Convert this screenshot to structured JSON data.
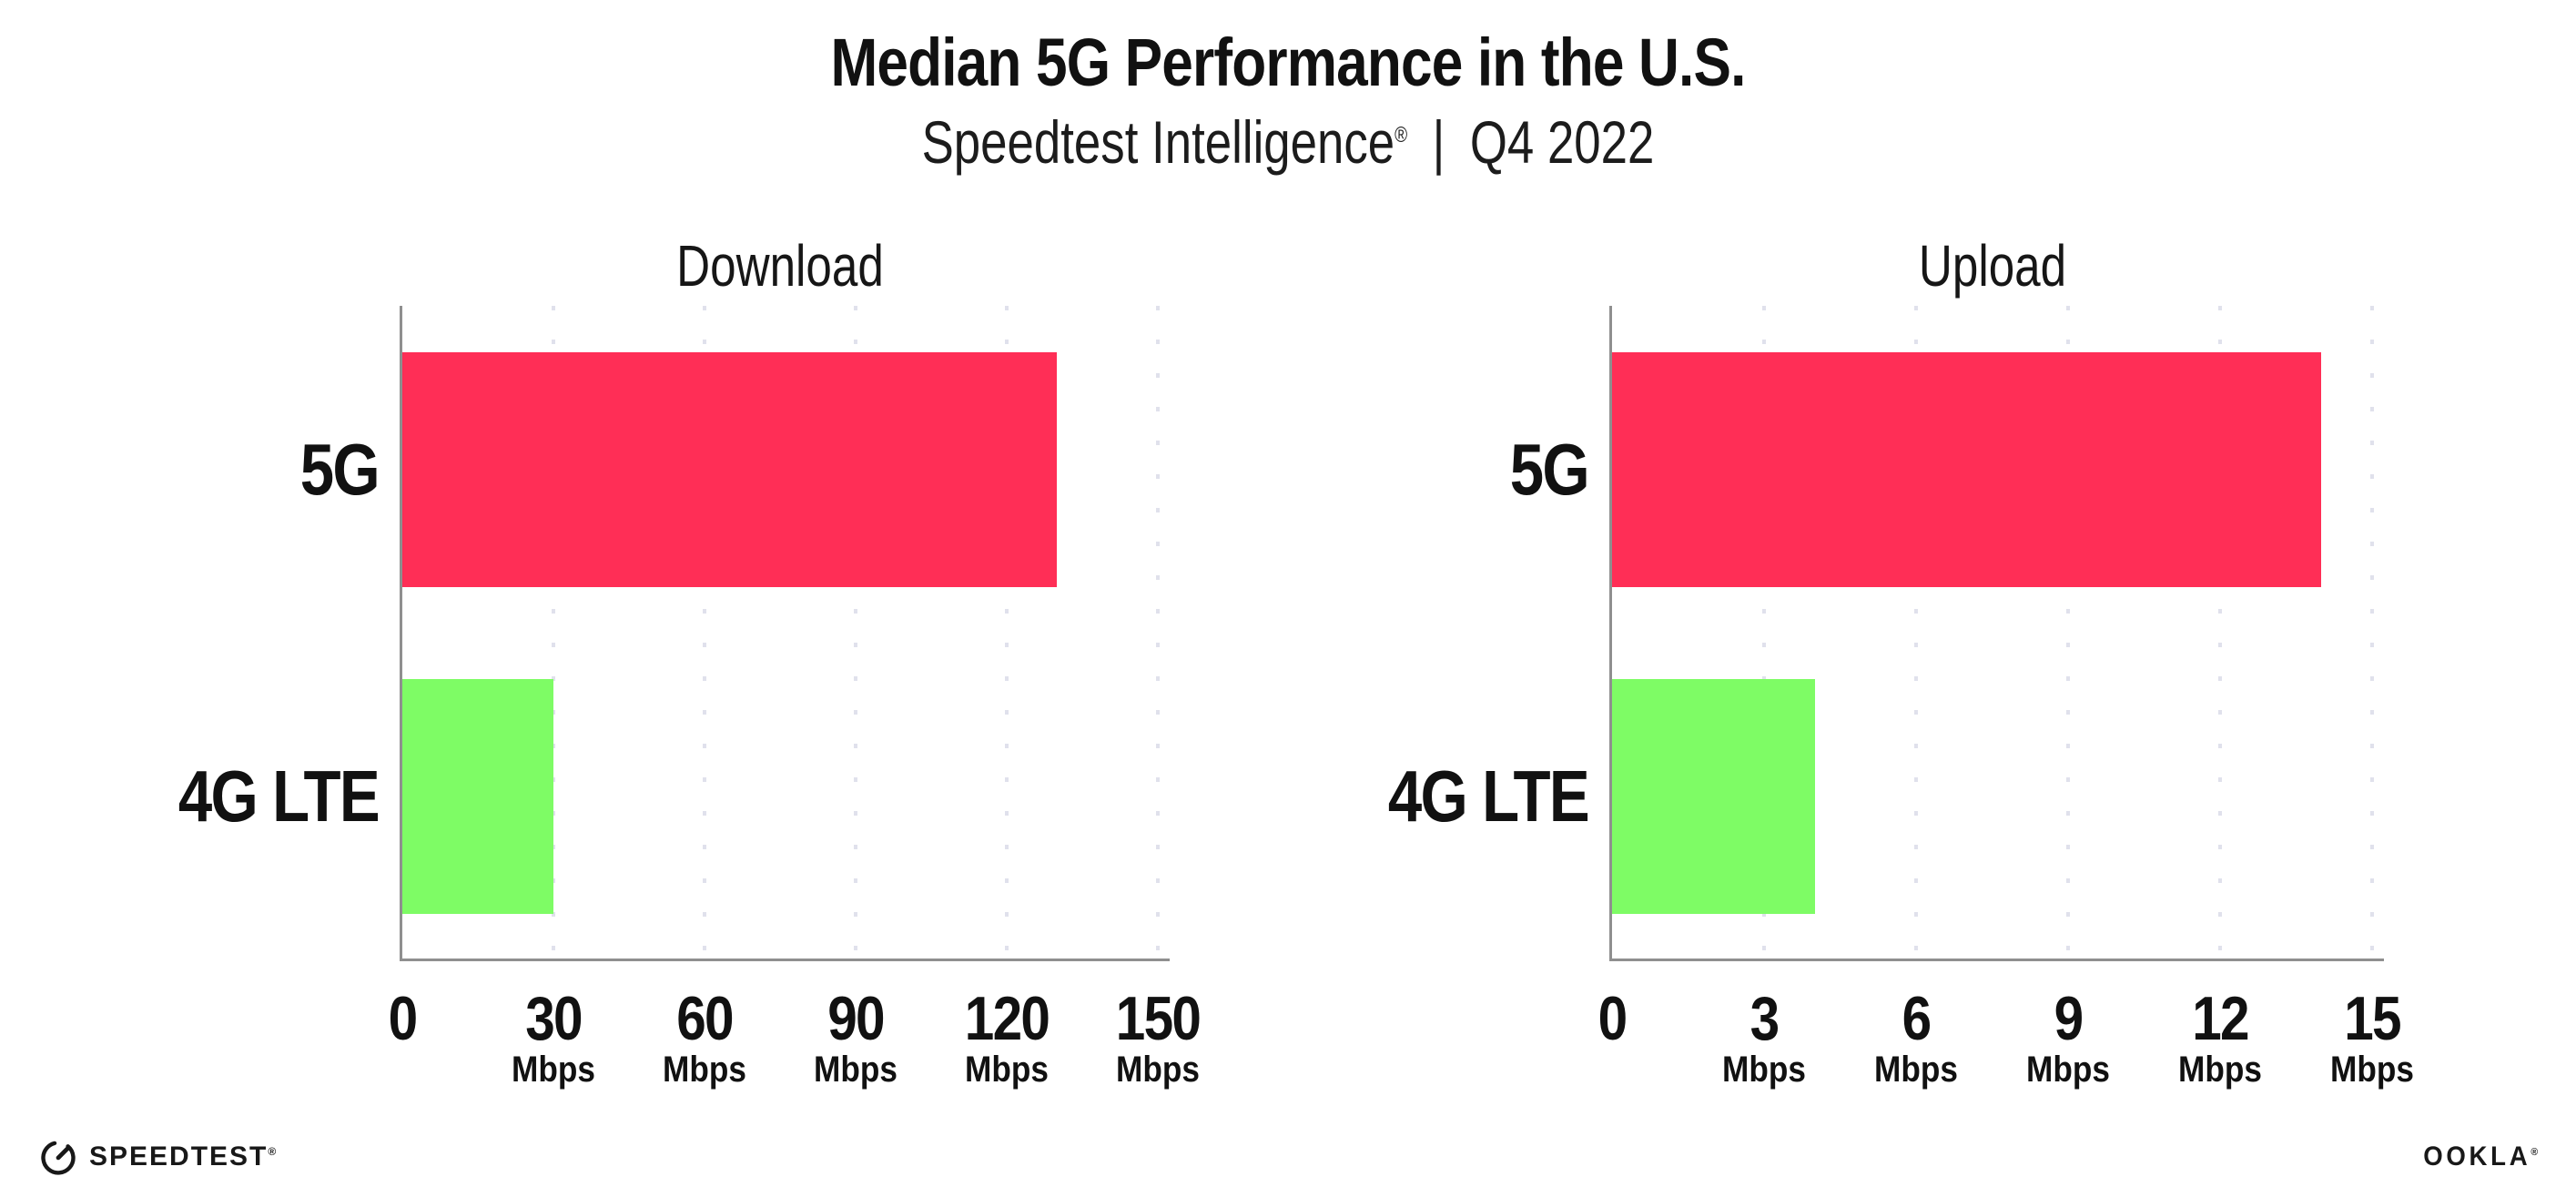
{
  "header": {
    "title": "Median 5G Performance in the U.S.",
    "subtitle_brand": "Speedtest Intelligence",
    "subtitle_reg": "®",
    "subtitle_separator": "|",
    "subtitle_period": "Q4 2022"
  },
  "chart_data": [
    {
      "type": "bar",
      "orientation": "horizontal",
      "title": "Download",
      "categories": [
        "5G",
        "4G LTE"
      ],
      "values": [
        130,
        30
      ],
      "unit": "Mbps",
      "xlim": [
        0,
        150
      ],
      "xticks": [
        0,
        30,
        60,
        90,
        120,
        150
      ],
      "bar_colors": [
        "#FF2E56",
        "#7EFC65"
      ],
      "grid": "dotted-vertical",
      "legend": "none"
    },
    {
      "type": "bar",
      "orientation": "horizontal",
      "title": "Upload",
      "categories": [
        "5G",
        "4G LTE"
      ],
      "values": [
        14,
        4
      ],
      "unit": "Mbps",
      "xlim": [
        0,
        15
      ],
      "xticks": [
        0,
        3,
        6,
        9,
        12,
        15
      ],
      "bar_colors": [
        "#FF2E56",
        "#7EFC65"
      ],
      "grid": "dotted-vertical",
      "legend": "none"
    }
  ],
  "footer": {
    "speedtest_label": "SPEEDTEST",
    "speedtest_mark": "®",
    "ookla_label": "OOKLA",
    "ookla_mark": "®"
  },
  "colors": {
    "bar_5g": "#FF2E56",
    "bar_4g_lte": "#7EFC65",
    "axis_line": "#8f8f8f",
    "gridline_dots": "#e0e1ec",
    "text": "#111111"
  }
}
